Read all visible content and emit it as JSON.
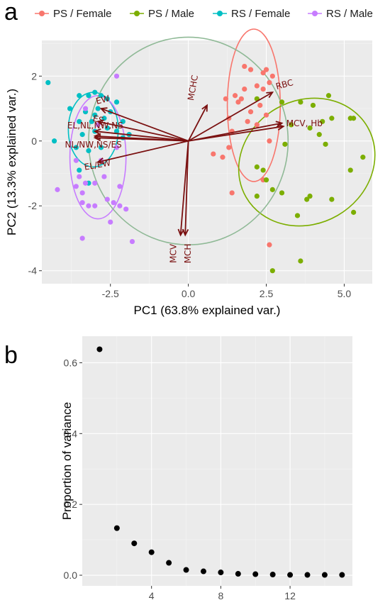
{
  "panels": {
    "a": "a",
    "b": "b"
  },
  "chart_data": [
    {
      "type": "scatter",
      "title": "",
      "xlabel": "PC1 (63.8% explained var.)",
      "ylabel": "PC2 (13.3% explained var.)",
      "xlim": [
        -4.7,
        5.9
      ],
      "ylim": [
        -4.4,
        3.1
      ],
      "xticks": [
        -2.5,
        0.0,
        2.5,
        5.0
      ],
      "xtick_labels": [
        "-2.5",
        "0.0",
        "2.5",
        "5.0"
      ],
      "yticks": [
        -4,
        -2,
        0,
        2
      ],
      "ytick_labels": [
        "-4",
        "-2",
        "0",
        "2"
      ],
      "grid": true,
      "legend_position": "top",
      "series": [
        {
          "name": "PS / Female",
          "color": "#F8766D",
          "ellipse": {
            "cx": 2.1,
            "cy": 1.1,
            "rx": 0.85,
            "ry": 2.35,
            "angle": 0
          },
          "points": [
            [
              1.2,
              1.3
            ],
            [
              1.5,
              1.4
            ],
            [
              1.6,
              1.2
            ],
            [
              1.7,
              1.3
            ],
            [
              1.8,
              1.6
            ],
            [
              2.0,
              2.2
            ],
            [
              2.2,
              1.7
            ],
            [
              2.4,
              1.6
            ],
            [
              2.3,
              1.1
            ],
            [
              2.0,
              0.9
            ],
            [
              1.9,
              0.6
            ],
            [
              2.2,
              0.5
            ],
            [
              2.5,
              0.8
            ],
            [
              2.6,
              1.8
            ],
            [
              2.4,
              2.1
            ],
            [
              1.8,
              2.3
            ],
            [
              2.7,
              2.0
            ],
            [
              1.3,
              0.7
            ],
            [
              1.4,
              0.3
            ],
            [
              1.3,
              -0.2
            ],
            [
              0.8,
              -0.4
            ],
            [
              1.1,
              -0.5
            ],
            [
              2.6,
              0.0
            ],
            [
              2.4,
              -1.2
            ],
            [
              1.4,
              -1.6
            ],
            [
              2.6,
              -3.2
            ],
            [
              2.5,
              2.2
            ]
          ]
        },
        {
          "name": "PS / Male",
          "color": "#7CAE00",
          "ellipse": {
            "cx": 3.8,
            "cy": -0.65,
            "rx": 2.25,
            "ry": 1.9,
            "angle": -30
          },
          "points": [
            [
              2.2,
              1.3
            ],
            [
              3.0,
              1.2
            ],
            [
              3.3,
              0.5
            ],
            [
              3.6,
              1.2
            ],
            [
              4.0,
              1.1
            ],
            [
              4.5,
              1.4
            ],
            [
              4.6,
              0.7
            ],
            [
              4.3,
              0.6
            ],
            [
              3.9,
              0.4
            ],
            [
              4.2,
              0.2
            ],
            [
              4.4,
              -0.1
            ],
            [
              5.2,
              0.7
            ],
            [
              5.3,
              0.7
            ],
            [
              5.6,
              -0.5
            ],
            [
              5.2,
              -0.9
            ],
            [
              4.6,
              -1.8
            ],
            [
              3.9,
              -1.7
            ],
            [
              3.8,
              -1.8
            ],
            [
              3.5,
              -2.3
            ],
            [
              2.7,
              -1.5
            ],
            [
              3.0,
              -1.6
            ],
            [
              2.2,
              -1.7
            ],
            [
              2.5,
              -1.2
            ],
            [
              2.2,
              -0.8
            ],
            [
              3.6,
              -3.7
            ],
            [
              2.7,
              -4.0
            ],
            [
              3.1,
              -0.1
            ],
            [
              2.4,
              -0.9
            ],
            [
              5.3,
              -2.2
            ]
          ]
        },
        {
          "name": "RS / Female",
          "color": "#00BFC4",
          "ellipse": {
            "cx": -3.05,
            "cy": 0.35,
            "rx": 0.8,
            "ry": 1.15,
            "angle": 0
          },
          "points": [
            [
              -4.5,
              1.8
            ],
            [
              -3.5,
              1.4
            ],
            [
              -3.2,
              1.4
            ],
            [
              -3.0,
              1.5
            ],
            [
              -2.8,
              1.4
            ],
            [
              -2.6,
              1.3
            ],
            [
              -2.3,
              1.2
            ],
            [
              -3.8,
              1.0
            ],
            [
              -3.3,
              0.9
            ],
            [
              -2.9,
              1.0
            ],
            [
              -2.5,
              0.9
            ],
            [
              -2.7,
              0.7
            ],
            [
              -3.1,
              0.6
            ],
            [
              -3.5,
              0.6
            ],
            [
              -3.4,
              0.2
            ],
            [
              -3.0,
              0.3
            ],
            [
              -2.6,
              0.4
            ],
            [
              -2.3,
              0.3
            ],
            [
              -2.1,
              0.1
            ],
            [
              -1.9,
              0.2
            ],
            [
              -2.1,
              0.6
            ],
            [
              -3.6,
              -0.2
            ],
            [
              -3.2,
              -0.3
            ],
            [
              -2.8,
              -0.2
            ],
            [
              -3.5,
              -0.9
            ],
            [
              -3.2,
              -1.3
            ],
            [
              -4.3,
              0.0
            ],
            [
              -3.0,
              0.8
            ]
          ]
        },
        {
          "name": "RS / Male",
          "color": "#C77CFF",
          "ellipse": {
            "cx": -2.9,
            "cy": -0.5,
            "rx": 0.9,
            "ry": 1.9,
            "angle": 0
          },
          "points": [
            [
              -2.3,
              2.0
            ],
            [
              -3.3,
              1.0
            ],
            [
              -2.9,
              0.5
            ],
            [
              -3.6,
              -0.6
            ],
            [
              -2.8,
              -0.6
            ],
            [
              -3.5,
              -1.1
            ],
            [
              -3.3,
              -1.3
            ],
            [
              -3.0,
              -1.3
            ],
            [
              -2.7,
              -1.1
            ],
            [
              -3.6,
              -1.4
            ],
            [
              -3.4,
              -1.6
            ],
            [
              -3.4,
              -1.9
            ],
            [
              -3.2,
              -2.0
            ],
            [
              -3.0,
              -2.0
            ],
            [
              -2.6,
              -1.8
            ],
            [
              -2.4,
              -1.9
            ],
            [
              -2.2,
              -2.0
            ],
            [
              -2.0,
              -2.1
            ],
            [
              -4.2,
              -1.5
            ],
            [
              -2.5,
              -2.5
            ],
            [
              -3.4,
              -3.0
            ],
            [
              -1.8,
              -3.1
            ],
            [
              -2.3,
              -0.2
            ],
            [
              -2.2,
              -1.4
            ]
          ]
        }
      ],
      "correlation_circle": {
        "cx": 0.0,
        "cy": 0.0,
        "r": 3.2,
        "color": "#8FB996"
      },
      "variables": [
        {
          "label": "RBC",
          "x": 2.7,
          "y": 1.5
        },
        {
          "label": "MCV, Hb",
          "x": 3.05,
          "y": 0.45
        },
        {
          "label": "",
          "x": 3.0,
          "y": 0.55
        },
        {
          "label": "MCHC",
          "x": 0.6,
          "y": 1.1
        },
        {
          "label": "MCV",
          "x": -0.25,
          "y": -2.9
        },
        {
          "label": "MCH",
          "x": -0.1,
          "y": -2.9
        },
        {
          "label": "EW",
          "x": -2.8,
          "y": 1.0
        },
        {
          "label": "ES",
          "x": -2.9,
          "y": 0.6
        },
        {
          "label": "EL,NL,NW,NS",
          "x": -3.0,
          "y": 0.3
        },
        {
          "label": "",
          "x": -3.0,
          "y": 0.15
        },
        {
          "label": "NL/NW,NS/ES",
          "x": -3.0,
          "y": 0.1
        },
        {
          "label": "EL/EW",
          "x": -2.9,
          "y": -0.65
        }
      ]
    },
    {
      "type": "scatter",
      "title": "",
      "xlabel": "",
      "ylabel": "Proportion of variance",
      "xlim": [
        0.0,
        15.6
      ],
      "ylim": [
        -0.03,
        0.675
      ],
      "xticks": [
        4,
        8,
        12
      ],
      "xtick_labels": [
        "4",
        "8",
        "12"
      ],
      "yticks": [
        0.0,
        0.2,
        0.4,
        0.6
      ],
      "ytick_labels": [
        "0.0",
        "0.2",
        "0.4",
        "0.6"
      ],
      "grid": true,
      "x": [
        1,
        2,
        3,
        4,
        5,
        6,
        7,
        8,
        9,
        10,
        11,
        12,
        13,
        14,
        15
      ],
      "values": [
        0.638,
        0.133,
        0.09,
        0.065,
        0.035,
        0.015,
        0.011,
        0.008,
        0.004,
        0.003,
        0.002,
        0.001,
        0.001,
        0.001,
        0.001
      ],
      "color": "#000000"
    }
  ]
}
